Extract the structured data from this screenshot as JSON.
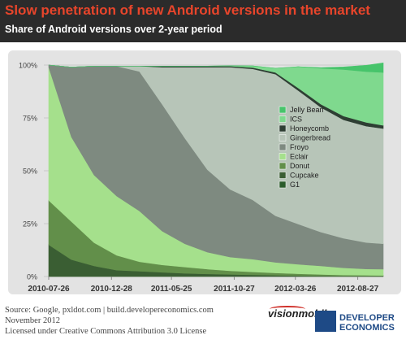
{
  "header": {
    "title": "Slow penetration of new Android versions in the market",
    "subtitle": "Share of Android versions over 2-year period"
  },
  "footer": {
    "source": "Source: Google, pxldot.com | build.developereconomics.com",
    "date": "November 2012",
    "license": "Licensed under Creative Commons Attribution 3.0 License"
  },
  "logos": {
    "visionmobile": "visionmobile",
    "developer_economics": [
      "DEVELOPER",
      "ECONOMICS"
    ]
  },
  "colors": {
    "header_bg": "#2b2b2b",
    "title": "#e8452b",
    "plot_bg": "#e3e3e3"
  },
  "chart_data": {
    "type": "area",
    "stacked": true,
    "title": "Slow penetration of new Android versions in the market",
    "subtitle": "Share of Android versions over 2-year period",
    "x": [
      "2010-07-26",
      "2010-09-20",
      "2010-11-15",
      "2011-01-10",
      "2011-03-07",
      "2011-05-02",
      "2011-06-27",
      "2011-08-22",
      "2011-10-17",
      "2011-12-12",
      "2012-02-06",
      "2012-04-02",
      "2012-05-28",
      "2012-07-23",
      "2012-09-17",
      "2012-10-29"
    ],
    "x_ticks": [
      "2010-07-26",
      "2010-12-28",
      "2011-05-25",
      "2011-10-27",
      "2012-03-26",
      "2012-08-27"
    ],
    "ylim": [
      0,
      100
    ],
    "y_ticks": [
      "0%",
      "25%",
      "50%",
      "75%",
      "100%"
    ],
    "grid": true,
    "legend_position": "right",
    "stack_order": "bottom-to-top",
    "series": [
      {
        "name": "G1",
        "color": "#2b5c2b",
        "values": [
          0,
          0,
          0,
          0,
          0,
          0,
          0,
          0,
          0,
          0,
          0,
          0,
          0,
          0,
          0,
          0
        ]
      },
      {
        "name": "Cupcake",
        "color": "#3a5e33",
        "values": [
          15,
          8,
          5,
          3,
          2.5,
          2,
          1.5,
          1.2,
          1,
          0.8,
          0.6,
          0.4,
          0.3,
          0.2,
          0.2,
          0.2
        ]
      },
      {
        "name": "Donut",
        "color": "#628f4a",
        "values": [
          21,
          18,
          11,
          7,
          4.5,
          3.5,
          3,
          2.3,
          1.7,
          1.4,
          1.1,
          0.9,
          0.7,
          0.5,
          0.4,
          0.3
        ]
      },
      {
        "name": "Eclair",
        "color": "#a5e08c",
        "values": [
          63,
          40,
          32,
          28,
          24,
          16,
          11,
          8,
          6.5,
          6,
          5,
          4.5,
          4,
          3.4,
          3,
          3
        ]
      },
      {
        "name": "Froyo",
        "color": "#7e8a80",
        "values": [
          1,
          33,
          51.5,
          61.5,
          66,
          60,
          50,
          39,
          32,
          28,
          22,
          19,
          16,
          14,
          12.5,
          12
        ]
      },
      {
        "name": "Gingerbread",
        "color": "#b7c5b8",
        "values": [
          0,
          0,
          0,
          0,
          2.5,
          17.5,
          33.5,
          48.5,
          57.8,
          62,
          67,
          63.2,
          59,
          56,
          55,
          54.5
        ]
      },
      {
        "name": "Honeycomb",
        "color": "#2e3e33",
        "values": [
          0,
          0,
          0,
          0,
          0,
          0.5,
          0.5,
          0.5,
          0.5,
          0.6,
          0.8,
          1.2,
          1.5,
          1.8,
          1.8,
          1.5
        ]
      },
      {
        "name": "ICS",
        "color": "#7fd98e",
        "values": [
          0,
          0,
          0,
          0,
          0,
          0,
          0,
          0,
          0.2,
          0.8,
          2,
          10,
          17,
          22,
          24,
          25
        ]
      },
      {
        "name": "Jelly Bean",
        "color": "#47c46b",
        "values": [
          0,
          0,
          0,
          0,
          0,
          0,
          0,
          0,
          0,
          0,
          0,
          0,
          0.3,
          1.2,
          3,
          4.5
        ]
      }
    ],
    "legend_order": [
      "Jelly Bean",
      "ICS",
      "Honeycomb",
      "Gingerbread",
      "Froyo",
      "Eclair",
      "Donut",
      "Cupcake",
      "G1"
    ]
  }
}
